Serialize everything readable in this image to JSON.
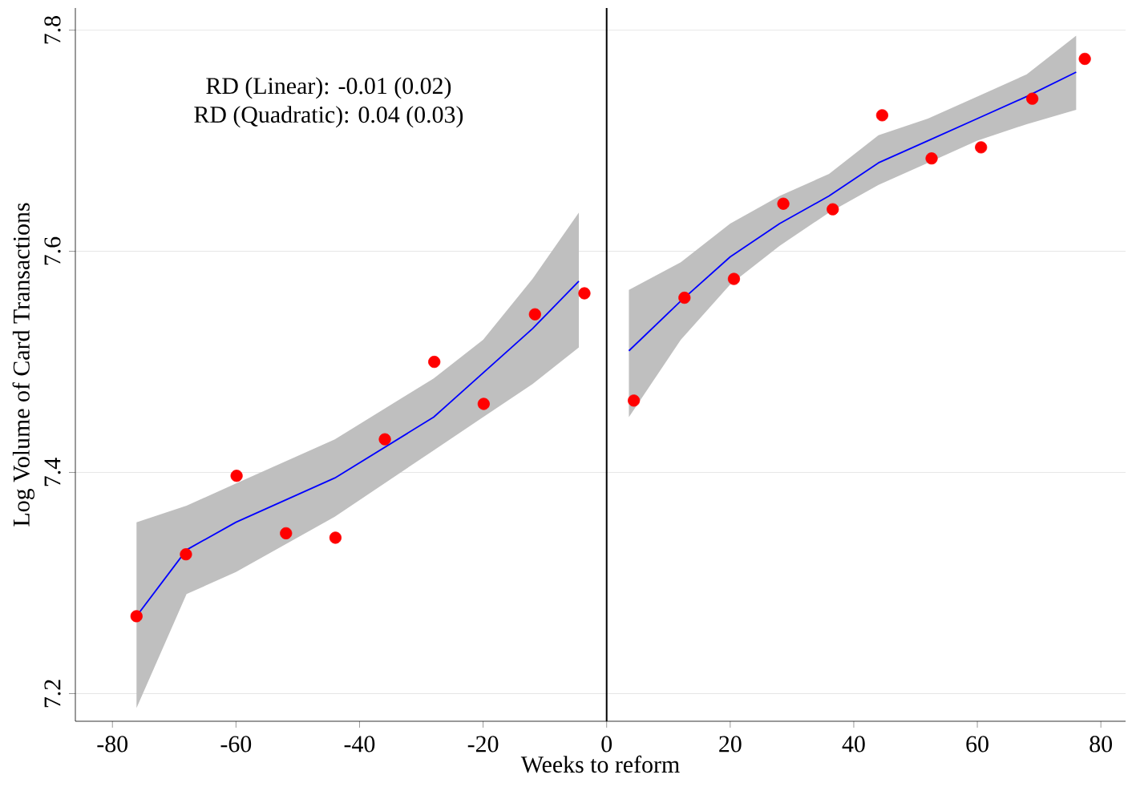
{
  "chart_data": {
    "type": "scatter",
    "xlabel": "Weeks to reform",
    "ylabel": "Log Volume of Card Transactions",
    "annotations": [
      "RD (Linear): -0.01 (0.02)",
      "RD (Quadratic): 0.04 (0.03)"
    ],
    "xlim": [
      -86,
      84
    ],
    "ylim": [
      7.175,
      7.82
    ],
    "xticks": [
      -80,
      -60,
      -40,
      -20,
      0,
      20,
      40,
      60,
      80
    ],
    "yticks": [
      7.2,
      7.4,
      7.6,
      7.8
    ],
    "grid": "y",
    "ref_lines": [
      {
        "axis": "x",
        "value": 0,
        "color": "#000000"
      }
    ],
    "series": [
      {
        "type": "line",
        "color": "#0000ff",
        "x": [
          -76.1,
          -68,
          -60,
          -44,
          -28,
          -20,
          -12,
          -4.5
        ],
        "values": [
          7.27,
          7.33,
          7.355,
          7.395,
          7.45,
          7.49,
          7.53,
          7.573
        ],
        "lower": [
          7.187,
          7.29,
          7.31,
          7.36,
          7.42,
          7.45,
          7.48,
          7.513
        ],
        "upper": [
          7.355,
          7.37,
          7.39,
          7.43,
          7.485,
          7.52,
          7.575,
          7.635
        ]
      },
      {
        "type": "line",
        "color": "#0000ff",
        "x": [
          3.6,
          12,
          20,
          28,
          36,
          44,
          52,
          60,
          68,
          76
        ],
        "values": [
          7.51,
          7.555,
          7.595,
          7.625,
          7.65,
          7.68,
          7.7,
          7.72,
          7.74,
          7.762
        ],
        "lower": [
          7.45,
          7.52,
          7.57,
          7.605,
          7.635,
          7.66,
          7.68,
          7.7,
          7.715,
          7.728
        ],
        "upper": [
          7.565,
          7.59,
          7.625,
          7.65,
          7.67,
          7.705,
          7.72,
          7.74,
          7.76,
          7.795
        ]
      },
      {
        "color": "#ff0000",
        "marker": "circle",
        "x": [
          -76.1,
          -68.1,
          -59.9,
          -51.9,
          -43.9,
          -35.9,
          -27.9,
          -19.9,
          -11.6,
          -3.6,
          4.4,
          12.6,
          20.6,
          28.6,
          36.6,
          44.6,
          52.6,
          60.6,
          68.9,
          77.4
        ],
        "values": [
          7.27,
          7.326,
          7.397,
          7.345,
          7.341,
          7.43,
          7.5,
          7.462,
          7.543,
          7.562,
          7.465,
          7.558,
          7.575,
          7.643,
          7.638,
          7.723,
          7.684,
          7.694,
          7.738,
          7.774
        ]
      }
    ]
  }
}
